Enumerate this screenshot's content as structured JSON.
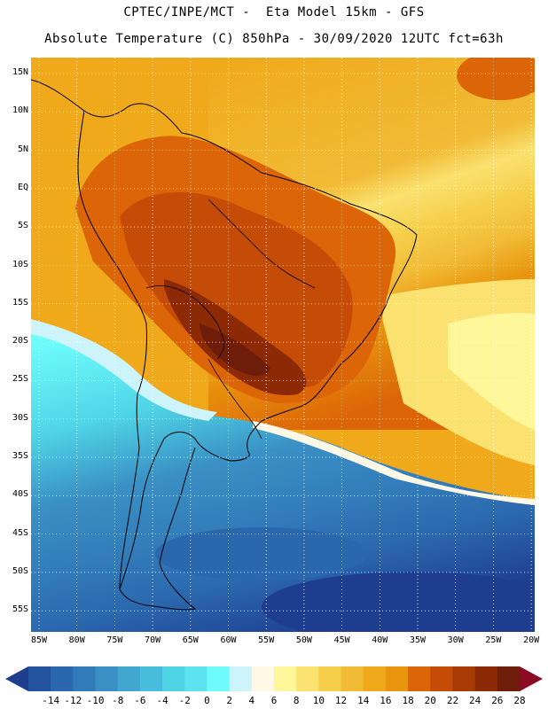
{
  "header": {
    "line1": "CPTEC/INPE/MCT -  Eta Model 15km - GFS",
    "line2": "Absolute Temperature (C) 850hPa - 30/09/2020 12UTC fct=63h"
  },
  "map": {
    "lat_labels": [
      "15N",
      "10N",
      "5N",
      "EQ",
      "5S",
      "10S",
      "15S",
      "20S",
      "25S",
      "30S",
      "35S",
      "40S",
      "45S",
      "50S",
      "55S"
    ],
    "lon_labels": [
      "85W",
      "80W",
      "75W",
      "70W",
      "65W",
      "60W",
      "55W",
      "50W",
      "45W",
      "40W",
      "35W",
      "30W",
      "25W",
      "20W"
    ]
  },
  "colorbar": {
    "labels": [
      "-14",
      "-12",
      "-10",
      "-8",
      "-6",
      "-4",
      "-2",
      "0",
      "2",
      "4",
      "6",
      "8",
      "10",
      "12",
      "14",
      "16",
      "18",
      "20",
      "22",
      "24",
      "26",
      "28"
    ],
    "colors": [
      "#1e3d8f",
      "#23539c",
      "#2b67ad",
      "#327bb9",
      "#3a90c4",
      "#41a7cf",
      "#47bedb",
      "#4fd4e6",
      "#5de3ef",
      "#6dfbfb",
      "#cdf4fa",
      "#fff8e6",
      "#fdf79a",
      "#fae170",
      "#f6cf4a",
      "#f1bb36",
      "#efa91a",
      "#e9950e",
      "#dc6607",
      "#c44c06",
      "#a73a05",
      "#8b2a05",
      "#6e1d0a",
      "#8b0a24"
    ]
  }
}
